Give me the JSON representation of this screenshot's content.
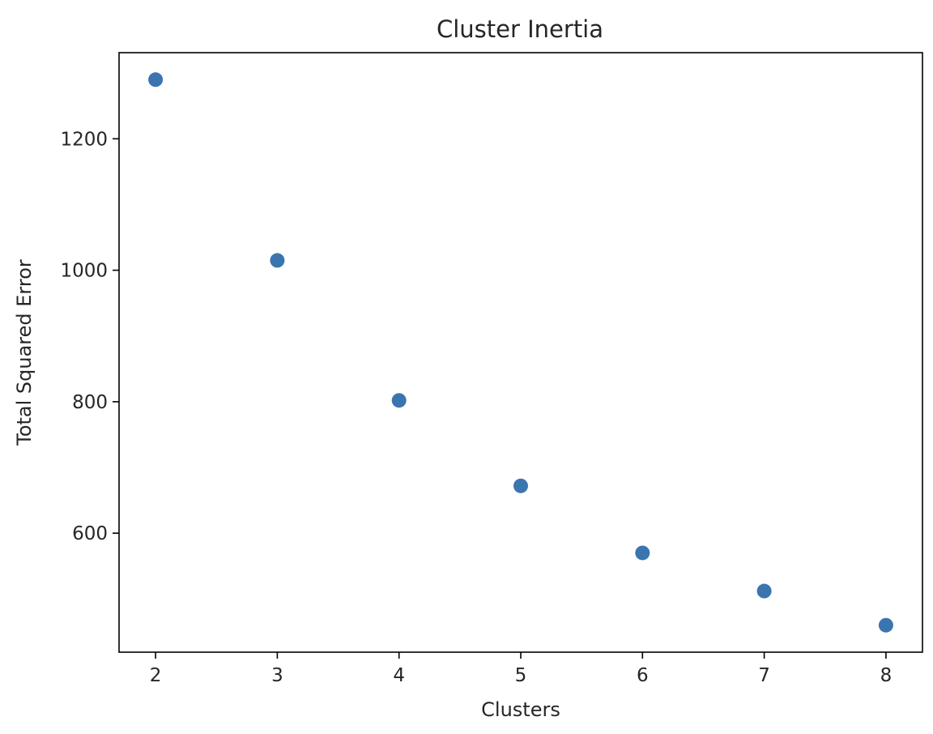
{
  "chart_data": {
    "type": "scatter",
    "title": "Cluster Inertia",
    "xlabel": "Clusters",
    "ylabel": "Total Squared Error",
    "x": [
      2,
      3,
      4,
      5,
      6,
      7,
      8
    ],
    "y": [
      1290,
      1015,
      802,
      672,
      570,
      512,
      460
    ],
    "xlim": [
      1.7,
      8.3
    ],
    "ylim": [
      419,
      1331
    ],
    "xticks": [
      2,
      3,
      4,
      5,
      6,
      7,
      8
    ],
    "yticks": [
      600,
      800,
      1000,
      1200
    ],
    "grid": false,
    "legend": "none",
    "marker_color": "#3a75b0"
  }
}
